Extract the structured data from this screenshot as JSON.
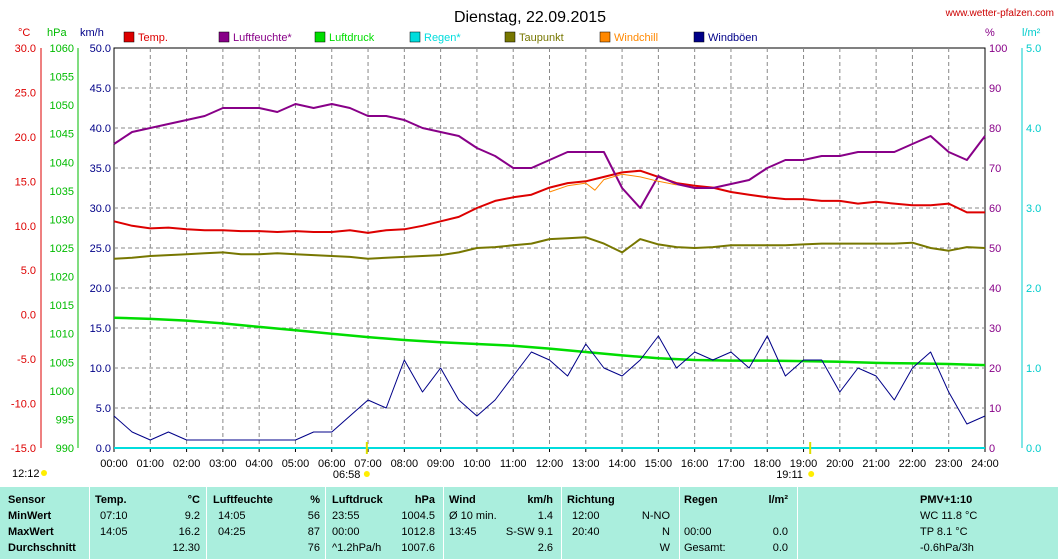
{
  "header": {
    "title": "Dienstag, 22.09.2015",
    "site": "www.wetter-pfalzen.com"
  },
  "axes": {
    "units": {
      "temp": "°C",
      "pressure": "hPa",
      "wind": "km/h",
      "humidity": "%",
      "rain": "l/m²"
    },
    "temp_ticks": [
      "30.0",
      "25.0",
      "20.0",
      "15.0",
      "10.0",
      "5.0",
      "0.0",
      "-5.0",
      "-10.0",
      "-15.0"
    ],
    "pressure_ticks": [
      "1060",
      "1055",
      "1050",
      "1045",
      "1040",
      "1035",
      "1030",
      "1025",
      "1020",
      "1015",
      "1010",
      "1005",
      "1000",
      "995",
      "990"
    ],
    "wind_ticks": [
      "50.0",
      "45.0",
      "40.0",
      "35.0",
      "30.0",
      "25.0",
      "20.0",
      "15.0",
      "10.0",
      "5.0",
      "0.0"
    ],
    "humidity_ticks": [
      "100",
      "90",
      "80",
      "70",
      "60",
      "50",
      "40",
      "30",
      "20",
      "10",
      "0"
    ],
    "rain_ticks": [
      "5.0",
      "4.0",
      "3.0",
      "2.0",
      "1.0",
      "0.0"
    ],
    "time_ticks": [
      "00:00",
      "01:00",
      "02:00",
      "03:00",
      "04:00",
      "05:00",
      "06:00",
      "07:00",
      "08:00",
      "09:00",
      "10:00",
      "11:00",
      "12:00",
      "13:00",
      "14:00",
      "15:00",
      "16:00",
      "17:00",
      "18:00",
      "19:00",
      "20:00",
      "21:00",
      "22:00",
      "23:00",
      "24:00"
    ],
    "moonrise": "12:12",
    "sunrise": "06:58",
    "sunset": "19:11"
  },
  "legend": [
    {
      "label": "Temp.",
      "color": "#dd0000"
    },
    {
      "label": "Luftfeuchte*",
      "color": "#880088"
    },
    {
      "label": "Luftdruck",
      "color": "#00dd00"
    },
    {
      "label": "Regen*",
      "color": "#00dddd"
    },
    {
      "label": "Taupunkt",
      "color": "#777700"
    },
    {
      "label": "Windchill",
      "color": "#ff8800"
    },
    {
      "label": "Windböen",
      "color": "#000088"
    }
  ],
  "chart_data": {
    "type": "line",
    "title": "Dienstag, 22.09.2015",
    "x_unit": "hour of day",
    "xlim": [
      0,
      24
    ],
    "series": [
      {
        "name": "Temp.",
        "unit": "°C",
        "axis": "temp",
        "ylim": [
          -15,
          30
        ],
        "x": [
          0,
          0.5,
          1,
          1.5,
          2,
          2.5,
          3,
          3.5,
          4,
          4.5,
          5,
          5.5,
          6,
          6.5,
          7,
          7.5,
          8,
          8.5,
          9,
          9.5,
          10,
          10.5,
          11,
          11.5,
          12,
          12.5,
          13,
          13.5,
          14,
          14.5,
          15,
          15.5,
          16,
          16.5,
          17,
          17.5,
          18,
          18.5,
          19,
          19.5,
          20,
          20.5,
          21,
          21.5,
          22,
          22.5,
          23,
          23.5,
          24
        ],
        "values": [
          10.5,
          10.0,
          9.7,
          9.8,
          9.6,
          9.5,
          9.5,
          9.4,
          9.4,
          9.3,
          9.4,
          9.3,
          9.3,
          9.5,
          9.2,
          9.5,
          9.6,
          10.0,
          10.5,
          11.0,
          12.0,
          12.8,
          13.2,
          13.5,
          14.3,
          14.8,
          15.0,
          15.5,
          16.0,
          16.2,
          15.5,
          14.8,
          14.5,
          14.3,
          13.8,
          13.5,
          13.2,
          13.0,
          13.0,
          12.8,
          12.8,
          12.5,
          12.7,
          12.5,
          12.3,
          12.3,
          12.5,
          11.5,
          11.5
        ]
      },
      {
        "name": "Luftfeuchte*",
        "unit": "%",
        "axis": "humidity",
        "ylim": [
          0,
          100
        ],
        "x": [
          0,
          0.5,
          1,
          1.5,
          2,
          2.5,
          3,
          3.5,
          4,
          4.5,
          5,
          5.5,
          6,
          6.5,
          7,
          7.5,
          8,
          8.5,
          9,
          9.5,
          10,
          10.5,
          11,
          11.5,
          12,
          12.5,
          13,
          13.5,
          14,
          14.5,
          15,
          15.5,
          16,
          16.5,
          17,
          17.5,
          18,
          18.5,
          19,
          19.5,
          20,
          20.5,
          21,
          21.5,
          22,
          22.5,
          23,
          23.5,
          24
        ],
        "values": [
          76,
          79,
          80,
          81,
          82,
          83,
          85,
          85,
          85,
          84,
          86,
          85,
          86,
          85,
          83,
          83,
          82,
          80,
          79,
          78,
          75,
          73,
          70,
          70,
          72,
          74,
          74,
          74,
          65,
          60,
          68,
          66,
          65,
          65,
          66,
          67,
          70,
          72,
          72,
          73,
          73,
          74,
          74,
          74,
          76,
          78,
          74,
          72,
          78
        ]
      },
      {
        "name": "Luftdruck",
        "unit": "hPa",
        "axis": "pressure",
        "ylim": [
          990,
          1060
        ],
        "x": [
          0,
          1,
          2,
          3,
          4,
          5,
          6,
          7,
          8,
          9,
          10,
          11,
          12,
          13,
          14,
          15,
          16,
          17,
          18,
          19,
          20,
          21,
          22,
          23,
          24
        ],
        "values": [
          1012.8,
          1012.6,
          1012.3,
          1011.8,
          1011.2,
          1010.6,
          1010.0,
          1009.4,
          1008.9,
          1008.5,
          1008.2,
          1007.9,
          1007.4,
          1006.8,
          1006.2,
          1005.7,
          1005.4,
          1005.3,
          1005.3,
          1005.2,
          1005.1,
          1004.9,
          1004.8,
          1004.7,
          1004.5
        ]
      },
      {
        "name": "Regen*",
        "unit": "l/m²",
        "axis": "rain",
        "ylim": [
          0,
          5
        ],
        "x": [
          0,
          24
        ],
        "values": [
          0.0,
          0.0
        ]
      },
      {
        "name": "Taupunkt",
        "unit": "°C",
        "axis": "temp",
        "ylim": [
          -15,
          30
        ],
        "x": [
          0,
          0.5,
          1,
          1.5,
          2,
          2.5,
          3,
          3.5,
          4,
          4.5,
          5,
          5.5,
          6,
          6.5,
          7,
          7.5,
          8,
          8.5,
          9,
          9.5,
          10,
          10.5,
          11,
          11.5,
          12,
          12.5,
          13,
          13.5,
          14,
          14.5,
          15,
          15.5,
          16,
          16.5,
          17,
          17.5,
          18,
          18.5,
          19,
          19.5,
          20,
          20.5,
          21,
          21.5,
          22,
          22.5,
          23,
          23.5,
          24
        ],
        "values": [
          6.3,
          6.4,
          6.6,
          6.7,
          6.8,
          6.9,
          7.0,
          6.8,
          6.8,
          6.9,
          6.8,
          6.7,
          6.6,
          6.5,
          6.3,
          6.4,
          6.5,
          6.6,
          6.7,
          7.0,
          7.5,
          7.6,
          7.8,
          8.0,
          8.5,
          8.6,
          8.7,
          8.0,
          7.0,
          8.5,
          7.9,
          7.6,
          7.5,
          7.6,
          7.8,
          7.8,
          7.8,
          7.8,
          7.9,
          8.0,
          8.0,
          8.0,
          8.0,
          8.0,
          8.1,
          7.5,
          7.2,
          7.6,
          7.5
        ]
      },
      {
        "name": "Windchill",
        "unit": "°C",
        "axis": "temp",
        "ylim": [
          -15,
          30
        ],
        "x": [
          12,
          12.5,
          13,
          13.25,
          13.5,
          14,
          14.5,
          15,
          15.5
        ],
        "values": [
          13.8,
          14.5,
          14.8,
          14.0,
          15.2,
          15.8,
          15.5,
          15.0,
          14.6
        ]
      },
      {
        "name": "Windböen",
        "unit": "km/h",
        "axis": "wind",
        "ylim": [
          0,
          50
        ],
        "x": [
          0,
          0.5,
          1,
          1.5,
          2,
          2.5,
          3,
          3.5,
          4,
          4.5,
          5,
          5.5,
          6,
          6.5,
          7,
          7.5,
          8,
          8.5,
          9,
          9.5,
          10,
          10.5,
          11,
          11.5,
          12,
          12.5,
          13,
          13.5,
          14,
          14.5,
          15,
          15.5,
          16,
          16.5,
          17,
          17.5,
          18,
          18.5,
          19,
          19.5,
          20,
          20.5,
          21,
          21.5,
          22,
          22.5,
          23,
          23.5,
          24
        ],
        "values": [
          4,
          2,
          1,
          2,
          1,
          1,
          1,
          1,
          1,
          1,
          1,
          2,
          2,
          4,
          6,
          5,
          11,
          7,
          10,
          6,
          4,
          6,
          9,
          12,
          11,
          9,
          13,
          10,
          9,
          11,
          14,
          10,
          12,
          11,
          12,
          10,
          14,
          9,
          11,
          11,
          7,
          10,
          9,
          6,
          10,
          12,
          7,
          3,
          4
        ]
      }
    ]
  },
  "stats": {
    "headers": {
      "sensor": "Sensor",
      "temp": "Temp.",
      "temp_unit": "°C",
      "hum": "Luftfeuchte",
      "hum_unit": "%",
      "pres": "Luftdruck",
      "pres_unit": "hPa",
      "wind": "Wind",
      "wind_unit": "km/h",
      "dir": "Richtung",
      "rain": "Regen",
      "rain_unit": "l/m²",
      "pmv": "PMV+1:10"
    },
    "rows": [
      {
        "label": "MinWert",
        "temp_time": "07:10",
        "temp_val": "9.2",
        "hum_time": "14:05",
        "hum_val": "56",
        "pres_time": "23:55",
        "pres_val": "1004.5",
        "wind_label": "Ø 10 min.",
        "wind_val": "1.4",
        "dir_time": "12:00",
        "dir_val": "N-NO",
        "rain_time": "",
        "rain_val": "",
        "pmv": "WC 11.8 °C"
      },
      {
        "label": "MaxWert",
        "temp_time": "14:05",
        "temp_val": "16.2",
        "hum_time": "04:25",
        "hum_val": "87",
        "pres_time": "00:00",
        "pres_val": "1012.8",
        "wind_label": "13:45",
        "wind_val": "S-SW 9.1",
        "dir_time": "20:40",
        "dir_val": "N",
        "rain_time": "00:00",
        "rain_val": "0.0",
        "pmv": "TP 8.1 °C"
      },
      {
        "label": "Durchschnitt",
        "temp_time": "",
        "temp_val": "12.30",
        "hum_time": "",
        "hum_val": "76",
        "pres_time": "^1.2hPa/h",
        "pres_val": "1007.6",
        "wind_label": "",
        "wind_val": "2.6",
        "dir_time": "",
        "dir_val": "W",
        "rain_time": "Gesamt:",
        "rain_val": "0.0",
        "pmv": "-0.6hPa/3h"
      }
    ]
  }
}
